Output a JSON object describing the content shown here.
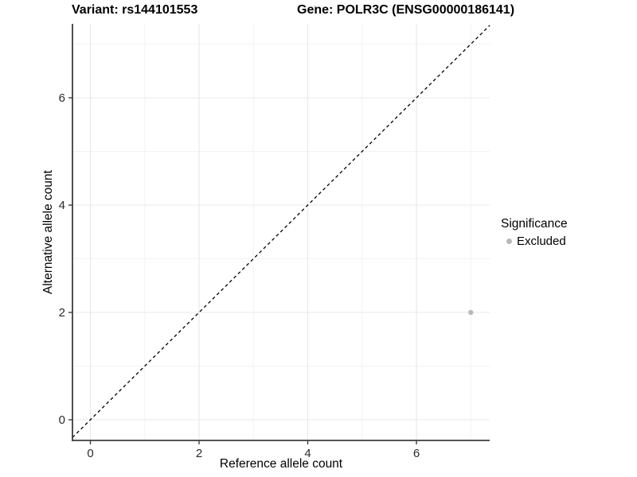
{
  "titles": {
    "left": "Variant: rs144101553",
    "right": "Gene: POLR3C (ENSG00000186141)"
  },
  "axes": {
    "x_label": "Reference allele count",
    "y_label": "Alternative allele count"
  },
  "legend": {
    "title": "Significance",
    "entries": [
      {
        "label": "Excluded",
        "color": "#b9b9b9",
        "marker": "circle"
      }
    ]
  },
  "chart_data": {
    "type": "scatter",
    "title": "Variant: rs144101553 / Gene: POLR3C (ENSG00000186141)",
    "xlabel": "Reference allele count",
    "ylabel": "Alternative allele count",
    "xlim": [
      -0.33,
      7.35
    ],
    "ylim": [
      -0.39,
      7.38
    ],
    "x_ticks": [
      0,
      2,
      4,
      6
    ],
    "y_ticks": [
      0,
      2,
      4,
      6
    ],
    "x_minor_gridlines": [
      1,
      3,
      5,
      7
    ],
    "y_minor_gridlines": [
      1,
      3,
      5,
      7
    ],
    "grid": true,
    "legend_position": "right",
    "series": [
      {
        "name": "Excluded",
        "color": "#b9b9b9",
        "points": [
          {
            "x": 7,
            "y": 2
          }
        ]
      }
    ],
    "identity_line": {
      "style": "dashed",
      "color": "#000000",
      "from": [
        -0.33,
        -0.33
      ],
      "to": [
        7.35,
        7.35
      ]
    },
    "point_radius": 3.2,
    "colors": {
      "grid_major": "#e8e8e8",
      "grid_minor": "#f2f2f2",
      "axis_line": "#3d3d3d",
      "tick_text": "#2b2b2b"
    }
  }
}
